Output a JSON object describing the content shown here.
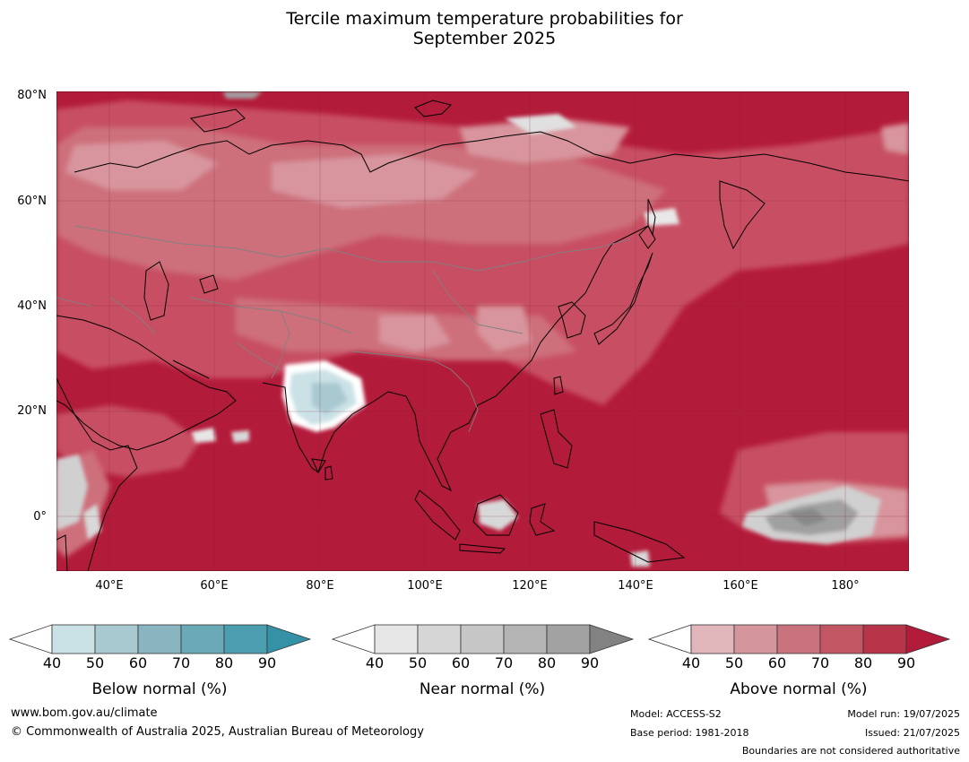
{
  "title": {
    "line1": "Tercile maximum temperature probabilities for",
    "line2": "September 2025"
  },
  "map": {
    "lat_labels": [
      "80°N",
      "60°N",
      "40°N",
      "20°N",
      "0°"
    ],
    "lon_labels": [
      "40°E",
      "60°E",
      "80°E",
      "100°E",
      "120°E",
      "140°E",
      "160°E",
      "180°"
    ],
    "colors": {
      "ocean_dominant": "#b31b3a",
      "above_70": "#c84f63",
      "above_60": "#cd6f7b",
      "above_50": "#d8959d",
      "below_50": "#a9c9d0",
      "near_70": "#a0a0a0",
      "near_50": "#d0d0d0",
      "coast": "#000000",
      "border": "#808080"
    }
  },
  "colorbars": [
    {
      "name": "below-normal",
      "title": "Below normal (%)",
      "ticks": [
        "40",
        "50",
        "60",
        "70",
        "80",
        "90"
      ],
      "colors": [
        "#cae1e6",
        "#a8c9cf",
        "#88b5c0",
        "#6aaab6",
        "#4a9eaf",
        "#3592a6"
      ]
    },
    {
      "name": "near-normal",
      "title": "Near normal (%)",
      "ticks": [
        "40",
        "50",
        "60",
        "70",
        "80",
        "90"
      ],
      "colors": [
        "#e6e6e6",
        "#d6d6d6",
        "#c6c6c6",
        "#b4b4b4",
        "#a2a2a2",
        "#828282"
      ]
    },
    {
      "name": "above-normal",
      "title": "Above normal (%)",
      "ticks": [
        "40",
        "50",
        "60",
        "70",
        "80",
        "90"
      ],
      "colors": [
        "#e1b6bb",
        "#d5959c",
        "#c9737e",
        "#c25763",
        "#b83448",
        "#b31b3a"
      ]
    }
  ],
  "footer": {
    "url": "www.bom.gov.au/climate",
    "copyright": "© Commonwealth of Australia 2025, Australian Bureau of Meteorology",
    "model": "Model: ACCESS-S2",
    "base_period": "Base period: 1981-2018",
    "model_run": "Model run: 19/07/2025",
    "issued": "Issued: 21/07/2025",
    "disclaimer": "Boundaries are not considered authoritative"
  }
}
